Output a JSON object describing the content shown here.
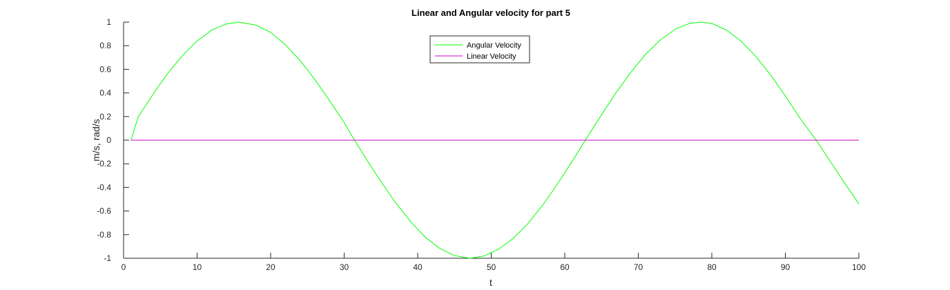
{
  "chart_data": {
    "type": "line",
    "title": "Linear and Angular velocity for part 5",
    "xlabel": "t",
    "ylabel": "m/s, rad/s",
    "xlim": [
      0,
      100
    ],
    "ylim": [
      -1,
      1
    ],
    "xticks": [
      0,
      10,
      20,
      30,
      40,
      50,
      60,
      70,
      80,
      90,
      100
    ],
    "yticks": [
      -1,
      -0.8,
      -0.6,
      -0.4,
      -0.2,
      0,
      0.2,
      0.4,
      0.6,
      0.8,
      1
    ],
    "grid": false,
    "legend_position": "top-center",
    "series": [
      {
        "name": "Angular Velocity",
        "color": "#00ff00",
        "x": [
          1,
          2,
          4,
          6,
          8,
          10,
          12,
          14,
          15.7,
          18,
          20,
          22,
          24,
          26,
          28,
          30,
          31.4,
          33,
          35,
          37,
          39,
          41,
          43,
          45,
          47.1,
          49,
          51,
          53,
          55,
          57,
          59,
          61,
          62.8,
          65,
          67,
          69,
          71,
          73,
          75,
          77,
          78.5,
          80,
          82,
          84,
          86,
          88,
          90,
          92,
          94.2,
          96,
          98,
          100
        ],
        "y": [
          0,
          0.2,
          0.389,
          0.565,
          0.717,
          0.841,
          0.932,
          0.985,
          1,
          0.974,
          0.913,
          0.809,
          0.675,
          0.516,
          0.335,
          0.149,
          0,
          -0.16,
          -0.351,
          -0.53,
          -0.688,
          -0.82,
          -0.917,
          -0.978,
          -1,
          -0.981,
          -0.924,
          -0.831,
          -0.705,
          -0.55,
          -0.372,
          -0.18,
          0,
          0.215,
          0.405,
          0.575,
          0.728,
          0.848,
          0.939,
          0.99,
          1,
          0.989,
          0.932,
          0.837,
          0.709,
          0.552,
          0.374,
          0.185,
          0,
          -0.169,
          -0.358,
          -0.54
        ]
      },
      {
        "name": "Linear Velocity",
        "color": "#cc00cc",
        "x": [
          1,
          100
        ],
        "y": [
          0,
          0
        ]
      }
    ]
  }
}
